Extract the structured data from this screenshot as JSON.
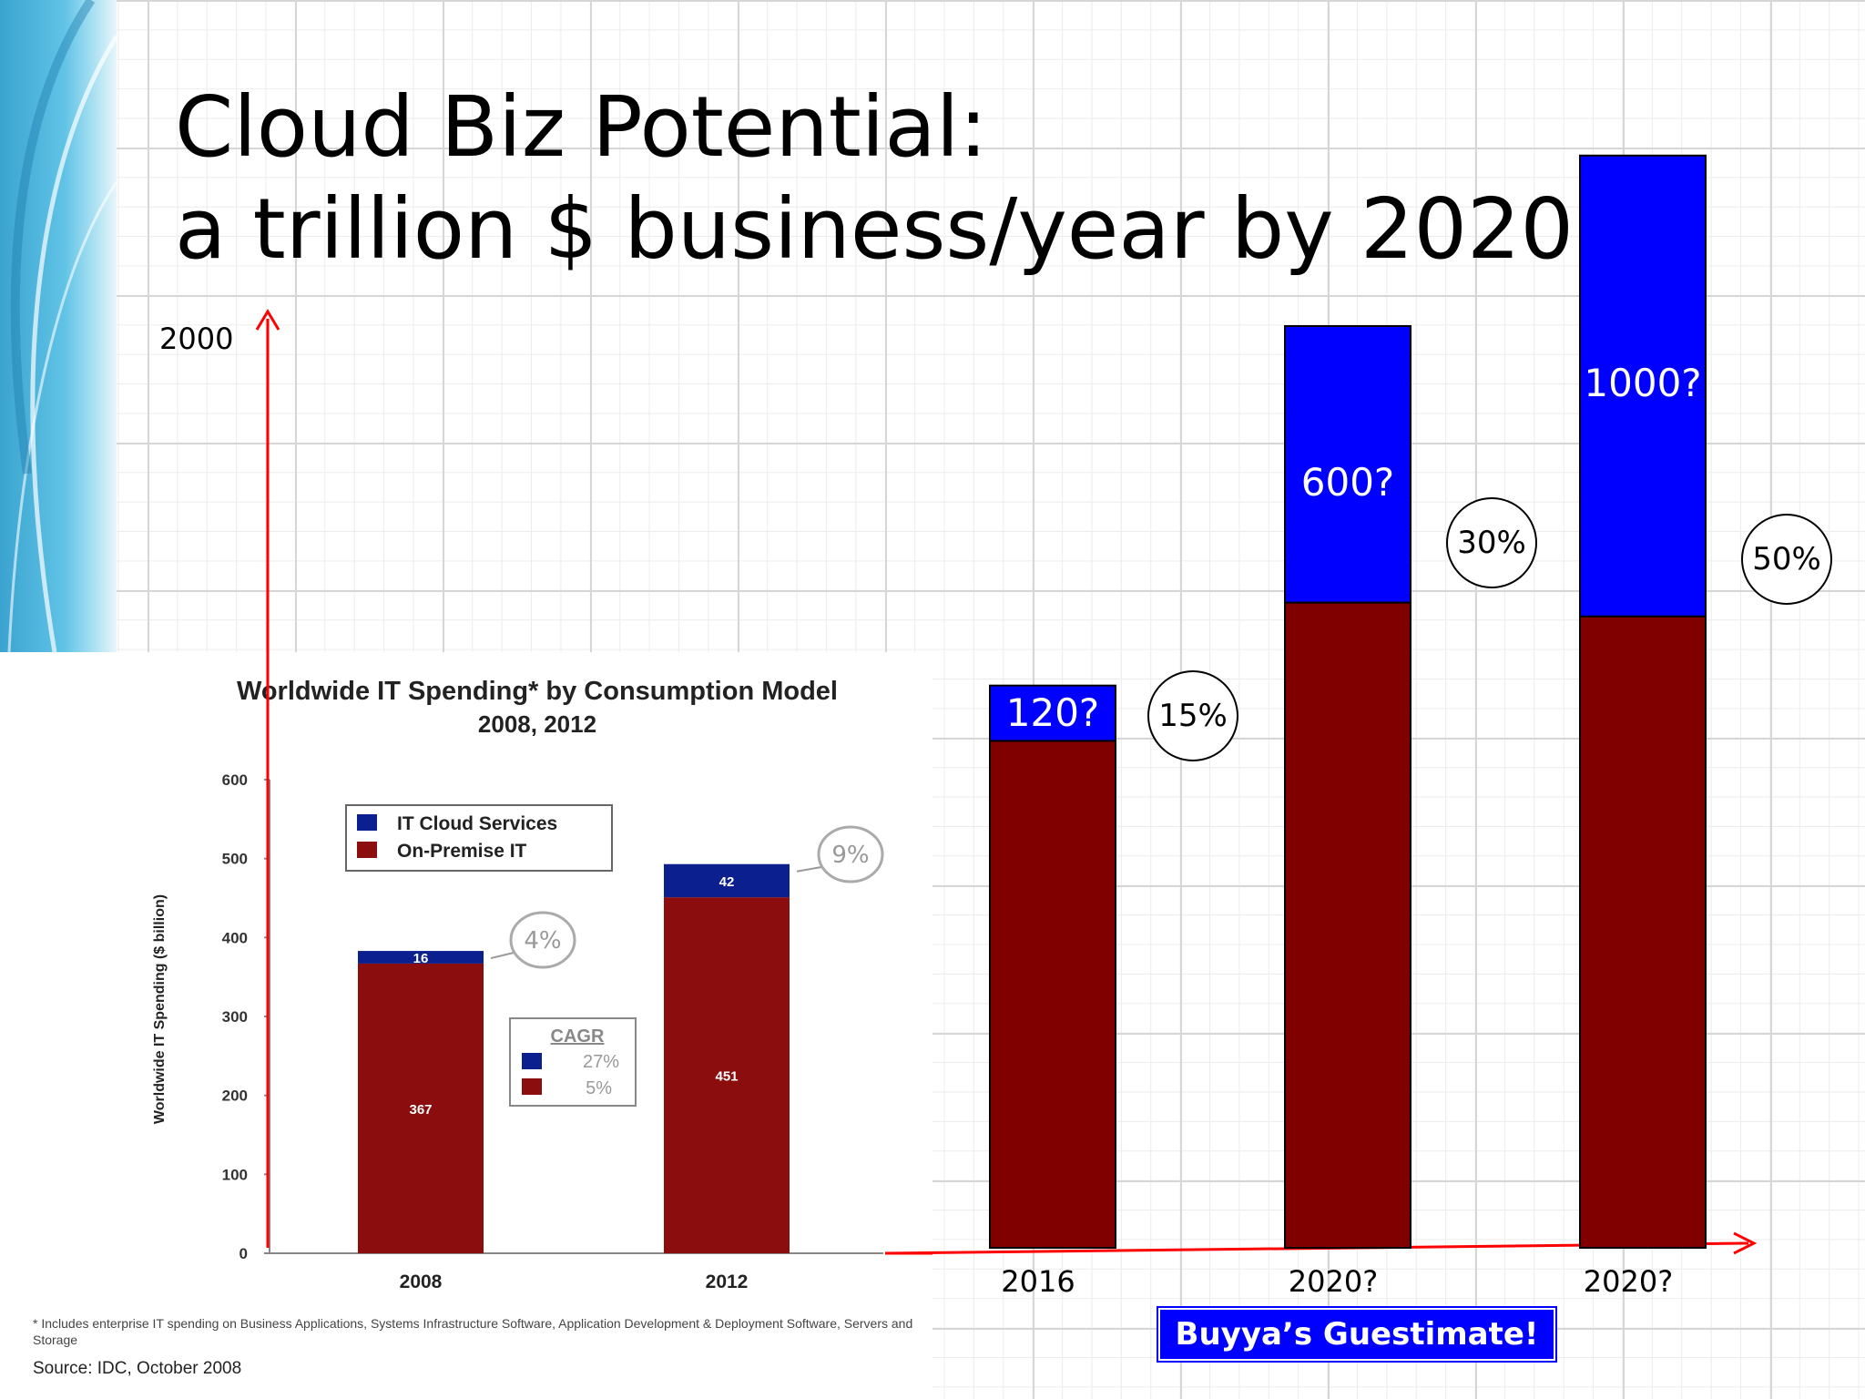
{
  "title": {
    "line1": "Cloud Biz Potential:",
    "line2": "a trillion $ business/year by 2020?"
  },
  "colors": {
    "cloud": "#0000ff",
    "on_premise": "#800000",
    "axis": "#ff0000",
    "inset_cloud": "#0b1f8f",
    "inset_on_premise": "#8b0d0d"
  },
  "chart_data": [
    {
      "type": "bar",
      "stacked": true,
      "title": "",
      "y_tick_label": "2000",
      "categories": [
        "2016",
        "2020?",
        "2020?"
      ],
      "series": [
        {
          "name": "",
          "values": [
            1100,
            1400,
            1370
          ]
        },
        {
          "name": "",
          "values": [
            120,
            600,
            1000
          ]
        }
      ],
      "segment_labels": [
        "120?",
        "600?",
        "1000?"
      ],
      "share_labels": [
        "15%",
        "30%",
        "50%"
      ],
      "annotation": "Buyya’s Guestimate!"
    },
    {
      "type": "bar",
      "stacked": true,
      "title": "Worldwide IT Spending* by Consumption Model",
      "subtitle": "2008, 2012",
      "ylabel": "Worldwide IT Spending ($ billion)",
      "ylim": [
        0,
        600
      ],
      "yticks": [
        0,
        100,
        200,
        300,
        400,
        500,
        600
      ],
      "categories": [
        "2008",
        "2012"
      ],
      "series": [
        {
          "name": "On-Premise IT",
          "values": [
            367,
            451
          ]
        },
        {
          "name": "IT Cloud Services",
          "values": [
            16,
            42
          ]
        }
      ],
      "share_labels": [
        "4%",
        "9%"
      ],
      "cagr": {
        "title": "CAGR",
        "cloud": "27%",
        "on_premise": "5%"
      },
      "footnote": "* Includes enterprise IT spending on Business Applications, Systems Infrastructure Software, Application Development & Deployment Software, Servers and Storage",
      "source": "Source: IDC, October 2008"
    }
  ]
}
